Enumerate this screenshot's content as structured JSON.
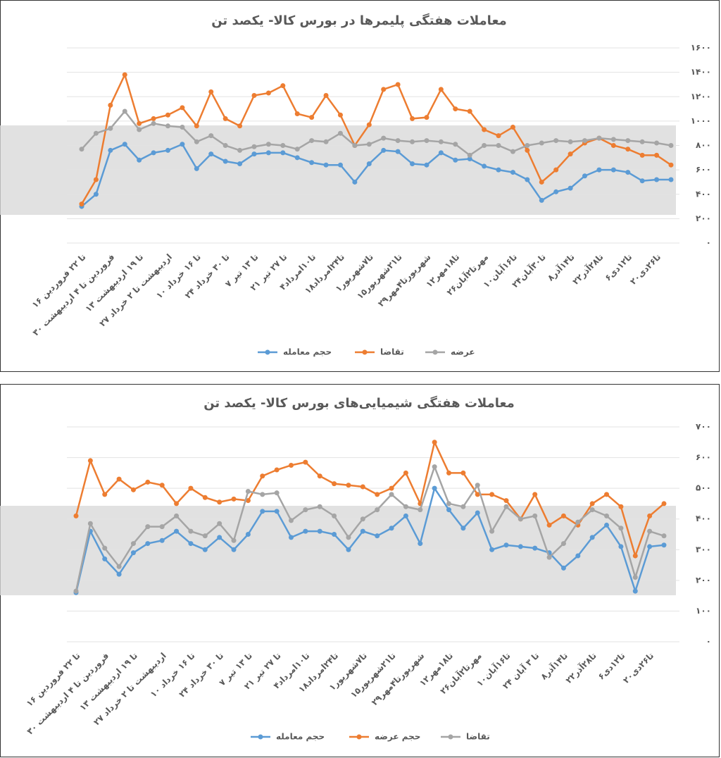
{
  "chart_data": [
    {
      "type": "line",
      "title": "معاملات هفتگی پلیمرها در بورس کالا- یکصد تن",
      "categories": [
        "۱۶ تا ۲۲ فروردین",
        null,
        "۳۰ فروردین تا ۴ اردیبهشت",
        null,
        "۱۳ تا ۱۹ اردیبهشت",
        null,
        "۲۷ اردیبهشت تا ۲ خرداد",
        null,
        "۱۰ تا ۱۶ خرداد",
        null,
        "۲۴ تا ۳۰ خرداد",
        null,
        "۷ تا ۱۳ تیر",
        null,
        "۲۱ تا ۲۷ تیر",
        null,
        "۴تا۱۰امرداد",
        null,
        "۱۸تا۲۴امرداد",
        null,
        "۱تا۷شهریور",
        null,
        "۱۵تا۲۱شهریور",
        null,
        "۲۹شهریورتا۴مهر",
        null,
        "۱۲تا۱۸مهر",
        null,
        "۲۶مهرتا۲آبان",
        null,
        "۱۰تا۱۶آبان",
        null,
        "۲۴تا۳۰آبان",
        null,
        "۸تا۱۴آذر",
        null,
        "۲۲تا۲۸آذر",
        null,
        "۶تا۱۲دی",
        null,
        "۲۰تا۲۶دی",
        null
      ],
      "series": [
        {
          "name": "حجم معامله",
          "color": "#5b9bd5",
          "values": [
            300,
            400,
            760,
            810,
            680,
            740,
            760,
            810,
            610,
            730,
            670,
            650,
            730,
            740,
            740,
            700,
            660,
            640,
            640,
            500,
            650,
            760,
            750,
            650,
            640,
            740,
            680,
            690,
            630,
            600,
            580,
            520,
            350,
            420,
            450,
            550,
            600,
            600,
            580,
            510,
            520,
            520
          ]
        },
        {
          "name": "تقاضا",
          "color": "#ed7d31",
          "values": [
            320,
            520,
            1130,
            1380,
            980,
            1020,
            1050,
            1110,
            960,
            1240,
            1020,
            960,
            1210,
            1230,
            1290,
            1060,
            1030,
            1210,
            1050,
            800,
            970,
            1260,
            1300,
            1020,
            1030,
            1260,
            1100,
            1080,
            930,
            880,
            950,
            760,
            500,
            600,
            730,
            820,
            860,
            800,
            770,
            720,
            720,
            640
          ]
        },
        {
          "name": "عرضه",
          "color": "#a5a5a5",
          "values": [
            770,
            900,
            940,
            1080,
            930,
            980,
            960,
            950,
            830,
            880,
            800,
            760,
            790,
            810,
            800,
            770,
            840,
            830,
            900,
            800,
            810,
            860,
            840,
            830,
            840,
            830,
            810,
            720,
            800,
            800,
            750,
            800,
            820,
            840,
            830,
            840,
            860,
            850,
            840,
            830,
            820,
            800
          ]
        }
      ],
      "ylim": [
        0,
        1600
      ],
      "yticks": [
        {
          "value": 0,
          "label": "۰"
        },
        {
          "value": 200,
          "label": "۲۰۰"
        },
        {
          "value": 400,
          "label": "۴۰۰"
        },
        {
          "value": 600,
          "label": "۶۰۰"
        },
        {
          "value": 800,
          "label": "۸۰۰"
        },
        {
          "value": 1000,
          "label": "۱۰۰۰"
        },
        {
          "value": 1200,
          "label": "۱۲۰۰"
        },
        {
          "value": 1400,
          "label": "۱۴۰۰"
        },
        {
          "value": 1600,
          "label": "۱۶۰۰"
        }
      ],
      "grid": true
    },
    {
      "type": "line",
      "title": "معاملات هفتگی شیمیایی‌های بورس کالا- یکصد تن",
      "categories": [
        "۱۶ تا ۲۲ فروردین",
        null,
        "۳۰ فروردین تا ۴ اردیبهشت",
        null,
        "۱۳ تا ۱۹ اردیبهشت",
        null,
        "۲۷ اردیبهشت تا ۲ خرداد",
        null,
        "۱۰ تا ۱۶ خرداد",
        null,
        "۲۴ تا ۳۰ خرداد",
        null,
        "۷ تا ۱۳ تیر",
        null,
        "۲۱ تا ۲۷ تیر",
        null,
        "۴تا۱۰امرداد",
        null,
        "۱۸تا۲۴امرداد",
        null,
        "۱تا۷شهریور",
        null,
        "۱۵تا۲۱شهریور",
        null,
        "۲۹شهریورتا۴مهر",
        null,
        "۱۲تا۱۸مهر",
        null,
        "۲۶مهرتا۲آبان",
        null,
        "۱۰تا۱۶آبان",
        null,
        "۲۴ تا ۳ آبان",
        null,
        "۸تا۱۴آذر",
        null,
        "۲۲تا۲۸آذر",
        null,
        "۶تا۱۲دی",
        null,
        "۲۰تا۲۶دی",
        null
      ],
      "series": [
        {
          "name": "حجم معامله",
          "color": "#5b9bd5",
          "values": [
            160,
            360,
            270,
            220,
            290,
            320,
            330,
            360,
            320,
            300,
            340,
            300,
            350,
            425,
            425,
            340,
            360,
            360,
            350,
            300,
            360,
            345,
            370,
            410,
            320,
            500,
            430,
            370,
            420,
            300,
            315,
            310,
            305,
            290,
            240,
            280,
            340,
            380,
            310,
            165,
            310,
            315
          ]
        },
        {
          "name": "حجم عرضه",
          "color": "#ed7d31",
          "values": [
            410,
            590,
            480,
            530,
            495,
            520,
            510,
            450,
            500,
            470,
            455,
            465,
            460,
            540,
            560,
            575,
            585,
            540,
            515,
            510,
            505,
            480,
            500,
            550,
            450,
            650,
            550,
            550,
            480,
            480,
            460,
            400,
            480,
            380,
            410,
            380,
            450,
            480,
            440,
            280,
            410,
            450
          ]
        },
        {
          "name": "تقاضا",
          "color": "#a5a5a5",
          "values": [
            165,
            385,
            305,
            245,
            320,
            375,
            375,
            410,
            360,
            345,
            385,
            330,
            490,
            480,
            485,
            395,
            430,
            440,
            410,
            340,
            400,
            430,
            480,
            440,
            430,
            570,
            450,
            440,
            510,
            360,
            440,
            400,
            410,
            275,
            320,
            390,
            430,
            410,
            370,
            210,
            360,
            345
          ]
        }
      ],
      "ylim": [
        0,
        700
      ],
      "yticks": [
        {
          "value": 0,
          "label": "۰"
        },
        {
          "value": 100,
          "label": "۱۰۰"
        },
        {
          "value": 200,
          "label": "۲۰۰"
        },
        {
          "value": 300,
          "label": "۳۰۰"
        },
        {
          "value": 400,
          "label": "۴۰۰"
        },
        {
          "value": 500,
          "label": "۵۰۰"
        },
        {
          "value": 600,
          "label": "۶۰۰"
        },
        {
          "value": 700,
          "label": "۷۰۰"
        }
      ],
      "grid": true
    }
  ]
}
